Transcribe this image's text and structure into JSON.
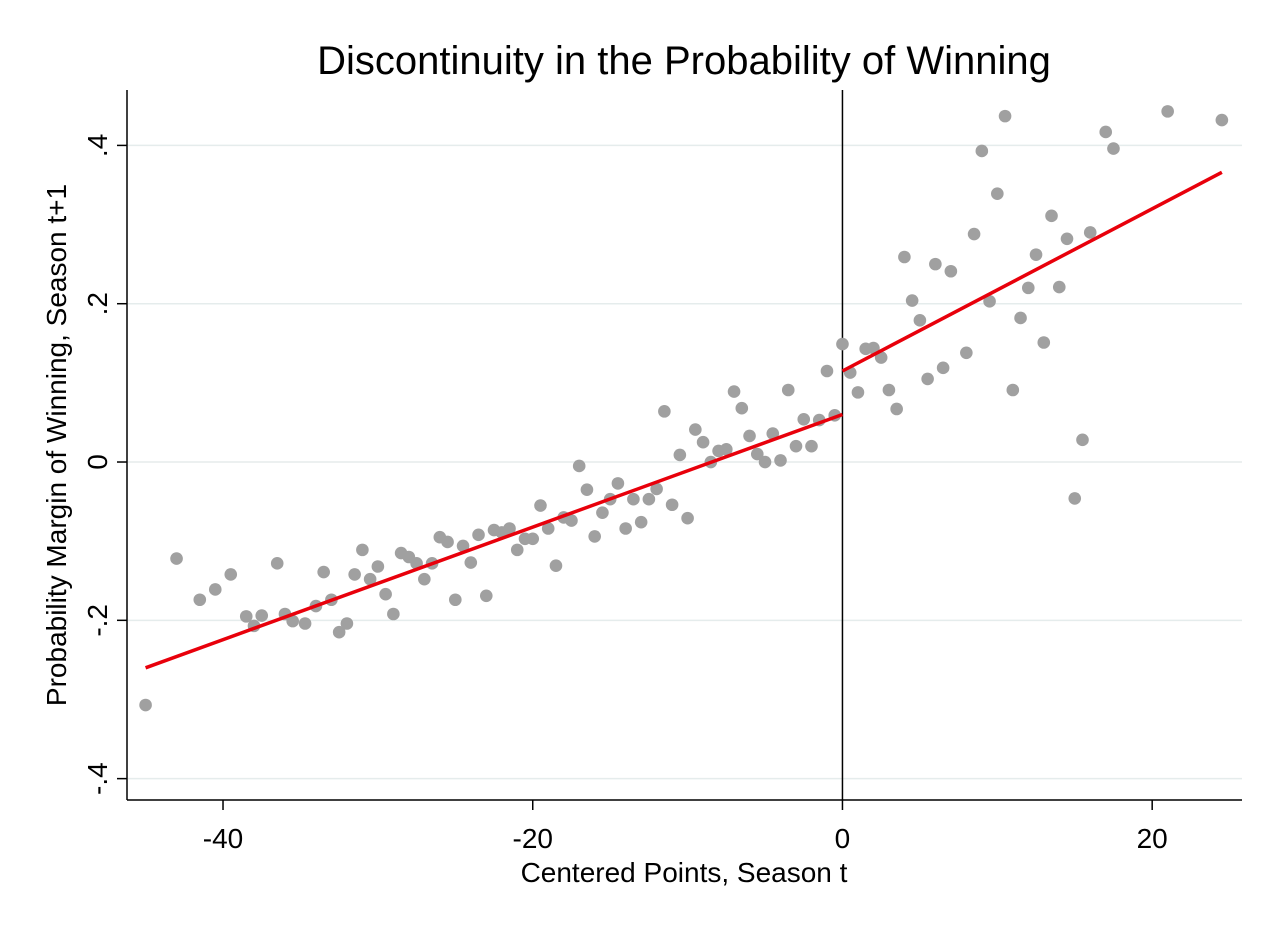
{
  "chart_data": {
    "type": "scatter",
    "title": "Discontinuity in the Probability of Winning",
    "xlabel": "Centered Points, Season t",
    "ylabel": "Probability Margin of Winning, Season t+1",
    "xlim": [
      -46.2,
      25.8
    ],
    "ylim": [
      -0.427,
      0.47
    ],
    "x_ticks": [
      {
        "value": -40,
        "label": "-40"
      },
      {
        "value": -20,
        "label": "-20"
      },
      {
        "value": 0,
        "label": "0"
      },
      {
        "value": 20,
        "label": "20"
      }
    ],
    "y_ticks": [
      {
        "value": -0.4,
        "label": "-.4"
      },
      {
        "value": -0.2,
        "label": "-.2"
      },
      {
        "value": 0,
        "label": "0"
      },
      {
        "value": 0.2,
        "label": ".2"
      },
      {
        "value": 0.4,
        "label": ".4"
      }
    ],
    "grid": "horizontal",
    "cutoff": 0,
    "colors": {
      "points": "#a0a0a0",
      "fit": "#e8000b",
      "grid": "#e5ecec",
      "axis": "#000000"
    },
    "series": [
      {
        "type": "scatter",
        "points": [
          [
            -45,
            -0.307
          ],
          [
            -43,
            -0.122
          ],
          [
            -41.5,
            -0.174
          ],
          [
            -40.5,
            -0.161
          ],
          [
            -39.5,
            -0.142
          ],
          [
            -38.5,
            -0.195
          ],
          [
            -38,
            -0.207
          ],
          [
            -37.5,
            -0.194
          ],
          [
            -36.5,
            -0.128
          ],
          [
            -36,
            -0.192
          ],
          [
            -35.5,
            -0.201
          ],
          [
            -34.7,
            -0.204
          ],
          [
            -34,
            -0.182
          ],
          [
            -33.5,
            -0.139
          ],
          [
            -33,
            -0.174
          ],
          [
            -32.5,
            -0.215
          ],
          [
            -32,
            -0.204
          ],
          [
            -31.5,
            -0.142
          ],
          [
            -31,
            -0.111
          ],
          [
            -30.5,
            -0.148
          ],
          [
            -30,
            -0.132
          ],
          [
            -29.5,
            -0.167
          ],
          [
            -29,
            -0.192
          ],
          [
            -28.5,
            -0.115
          ],
          [
            -28,
            -0.12
          ],
          [
            -27.5,
            -0.128
          ],
          [
            -27,
            -0.148
          ],
          [
            -26.5,
            -0.128
          ],
          [
            -26,
            -0.095
          ],
          [
            -25.5,
            -0.101
          ],
          [
            -25,
            -0.174
          ],
          [
            -24.5,
            -0.106
          ],
          [
            -24,
            -0.127
          ],
          [
            -23.5,
            -0.092
          ],
          [
            -23,
            -0.169
          ],
          [
            -22.5,
            -0.086
          ],
          [
            -22,
            -0.089
          ],
          [
            -21.5,
            -0.084
          ],
          [
            -21,
            -0.111
          ],
          [
            -20.5,
            -0.097
          ],
          [
            -20,
            -0.097
          ],
          [
            -19.5,
            -0.055
          ],
          [
            -19,
            -0.084
          ],
          [
            -18.5,
            -0.131
          ],
          [
            -18,
            -0.07
          ],
          [
            -17.5,
            -0.074
          ],
          [
            -17,
            -0.005
          ],
          [
            -16.5,
            -0.035
          ],
          [
            -16,
            -0.094
          ],
          [
            -15.5,
            -0.064
          ],
          [
            -15,
            -0.047
          ],
          [
            -14.5,
            -0.027
          ],
          [
            -14,
            -0.084
          ],
          [
            -13.5,
            -0.047
          ],
          [
            -13,
            -0.076
          ],
          [
            -12.5,
            -0.047
          ],
          [
            -12,
            -0.034
          ],
          [
            -11.5,
            0.064
          ],
          [
            -11,
            -0.054
          ],
          [
            -10.5,
            0.009
          ],
          [
            -10,
            -0.071
          ],
          [
            -9.5,
            0.041
          ],
          [
            -9,
            0.025
          ],
          [
            -8.5,
            0.0
          ],
          [
            -8,
            0.014
          ],
          [
            -7.5,
            0.016
          ],
          [
            -7,
            0.089
          ],
          [
            -6.5,
            0.068
          ],
          [
            -6,
            0.033
          ],
          [
            -5.5,
            0.01
          ],
          [
            -5,
            0.0
          ],
          [
            -4.5,
            0.036
          ],
          [
            -4,
            0.002
          ],
          [
            -3.5,
            0.091
          ],
          [
            -3,
            0.02
          ],
          [
            -2.5,
            0.054
          ],
          [
            -2,
            0.02
          ],
          [
            -1.5,
            0.053
          ],
          [
            -1,
            0.115
          ],
          [
            -0.5,
            0.059
          ],
          [
            0,
            0.149
          ],
          [
            0.5,
            0.113
          ],
          [
            1,
            0.088
          ],
          [
            1.5,
            0.143
          ],
          [
            2,
            0.144
          ],
          [
            2.5,
            0.132
          ],
          [
            3,
            0.091
          ],
          [
            3.5,
            0.067
          ],
          [
            4,
            0.259
          ],
          [
            4.5,
            0.204
          ],
          [
            5,
            0.179
          ],
          [
            5.5,
            0.105
          ],
          [
            6,
            0.25
          ],
          [
            6.5,
            0.119
          ],
          [
            7,
            0.241
          ],
          [
            8,
            0.138
          ],
          [
            8.5,
            0.288
          ],
          [
            9,
            0.393
          ],
          [
            9.5,
            0.203
          ],
          [
            10,
            0.339
          ],
          [
            10.5,
            0.437
          ],
          [
            11,
            0.091
          ],
          [
            11.5,
            0.182
          ],
          [
            12,
            0.22
          ],
          [
            12.5,
            0.262
          ],
          [
            13,
            0.151
          ],
          [
            13.5,
            0.311
          ],
          [
            14,
            0.221
          ],
          [
            14.5,
            0.282
          ],
          [
            15,
            -0.046
          ],
          [
            15.5,
            0.028
          ],
          [
            16,
            0.29
          ],
          [
            17,
            0.417
          ],
          [
            17.5,
            0.396
          ],
          [
            21,
            0.443
          ],
          [
            24.5,
            0.432
          ]
        ]
      },
      {
        "type": "line",
        "x": [
          -45,
          0
        ],
        "y": [
          -0.26,
          0.06
        ]
      },
      {
        "type": "line",
        "x": [
          0,
          24.5
        ],
        "y": [
          0.115,
          0.366
        ]
      }
    ]
  }
}
